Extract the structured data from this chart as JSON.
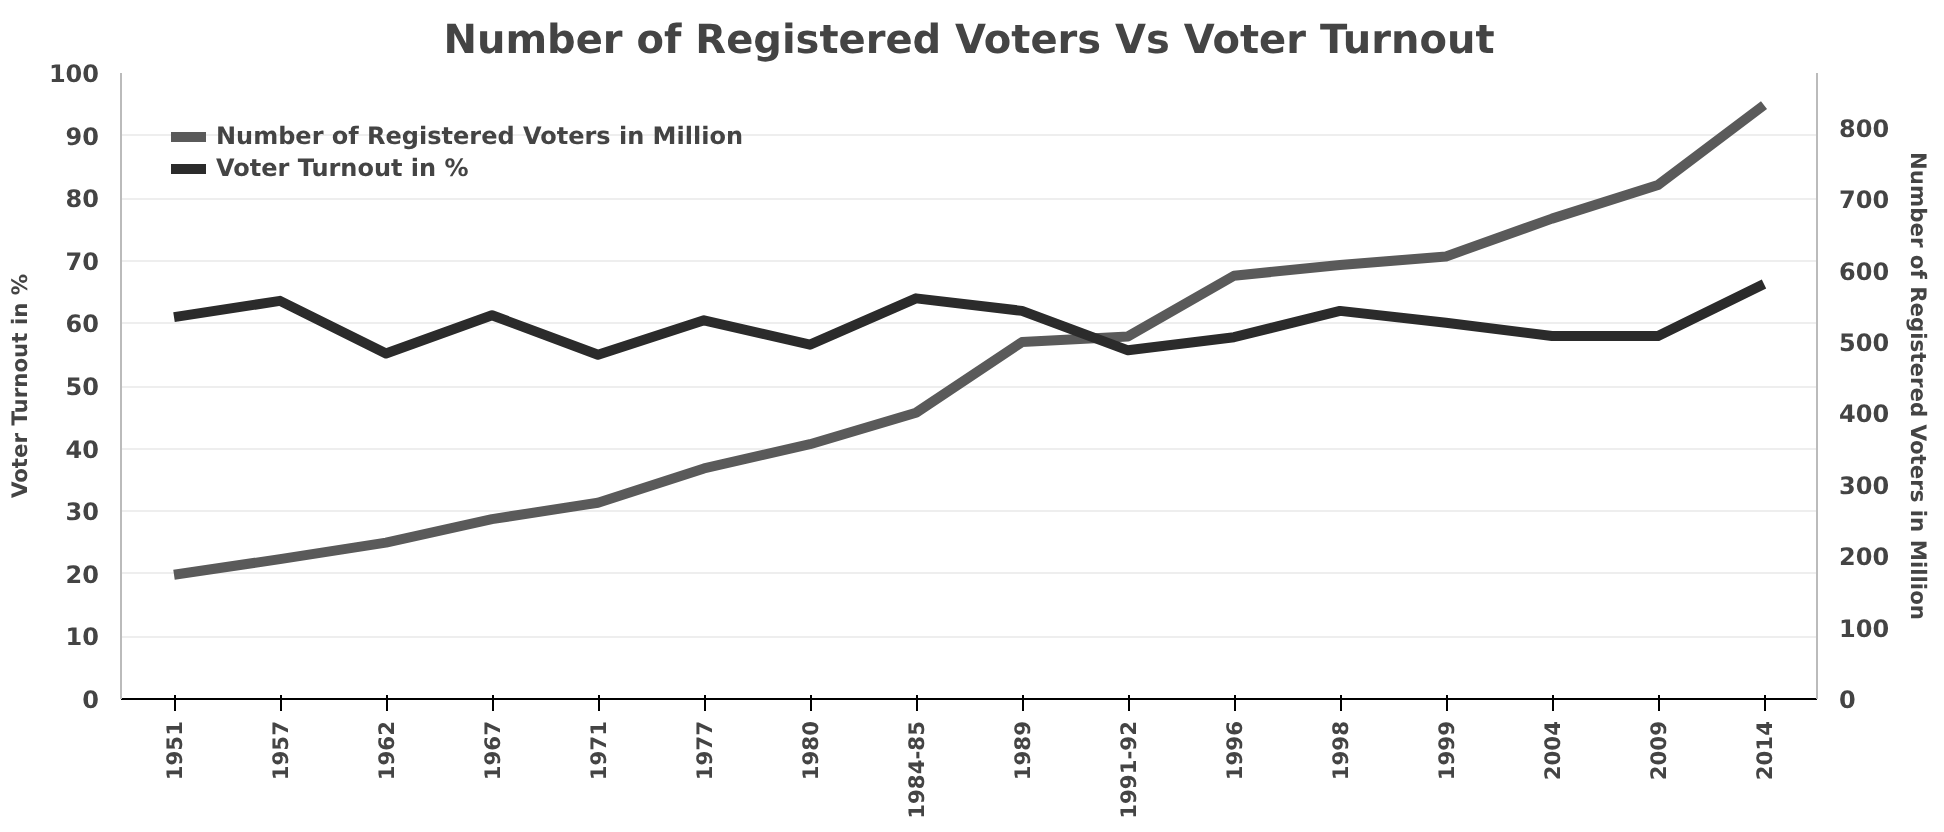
{
  "chart_data": {
    "type": "line",
    "title": "Number of Registered Voters Vs Voter Turnout",
    "ylabel": "Voter Turnout in %",
    "y2label": "Number of Registered Voters in Million",
    "categories": [
      "1951",
      "1957",
      "1962",
      "1967",
      "1971",
      "1977",
      "1980",
      "1984-85",
      "1989",
      "1991-92",
      "1996",
      "1998",
      "1999",
      "2004",
      "2009",
      "2014"
    ],
    "series": [
      {
        "name": "Number of Registered Voters in Million",
        "color": "#5a5a5a",
        "axis": "y2",
        "values": [
          174,
          196,
          219,
          252,
          275,
          323,
          357,
          401,
          500,
          508,
          593,
          608,
          620,
          673,
          720,
          832
        ]
      },
      {
        "name": "Voter Turnout in %",
        "color": "#2b2b2b",
        "values": [
          61.0,
          63.6,
          55.2,
          61.3,
          55.0,
          60.5,
          56.6,
          64.0,
          62.0,
          55.7,
          57.8,
          62.0,
          60.1,
          58.0,
          58.0,
          66.3
        ]
      }
    ],
    "ylim": [
      0,
      100
    ],
    "yticks": [
      0,
      10,
      20,
      30,
      40,
      50,
      60,
      70,
      80,
      90,
      100
    ],
    "y2lim": [
      0,
      877
    ],
    "y2ticks": [
      0,
      100,
      200,
      300,
      400,
      500,
      600,
      700,
      800
    ],
    "grid": "y",
    "legend": "top left",
    "line_style": "solid",
    "marker": "none"
  }
}
